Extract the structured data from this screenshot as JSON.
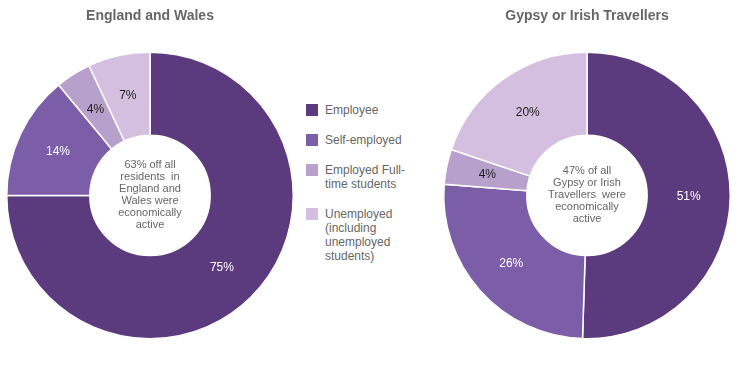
{
  "chart_data": [
    {
      "type": "doughnut",
      "title": "England and Wales",
      "categories": [
        "Employee",
        "Self-employed",
        "Employed Full-\ntime students",
        "Unemployed\n(including\nunemployed\nstudents)"
      ],
      "values": [
        75,
        14,
        4,
        7
      ],
      "value_labels": [
        "75%",
        "14%",
        "4%",
        "7%"
      ],
      "colors": [
        "#5b3a7e",
        "#7b5ea7",
        "#b8a0cc",
        "#d4bfe0"
      ],
      "annotation": "63% off all\nresidents  in\nEngland and\nWales were\neconomically\nactive",
      "data_labels": true,
      "legend": "right"
    },
    {
      "type": "doughnut",
      "title": "Gypsy or Irish Travellers",
      "categories": [
        "Employee",
        "Self-employed",
        "Employed Full-\ntime students",
        "Unemployed\n(including\nunemployed\nstudents)"
      ],
      "values": [
        51,
        26,
        4,
        20
      ],
      "value_labels": [
        "51%",
        "26%",
        "4%",
        "20%"
      ],
      "colors": [
        "#5b3a7e",
        "#7b5ea7",
        "#b8a0cc",
        "#d4bfe0"
      ],
      "annotation": "47% of all\nGypsy or Irish\nTravellers  were\neconomically\nactive",
      "data_labels": true
    }
  ]
}
